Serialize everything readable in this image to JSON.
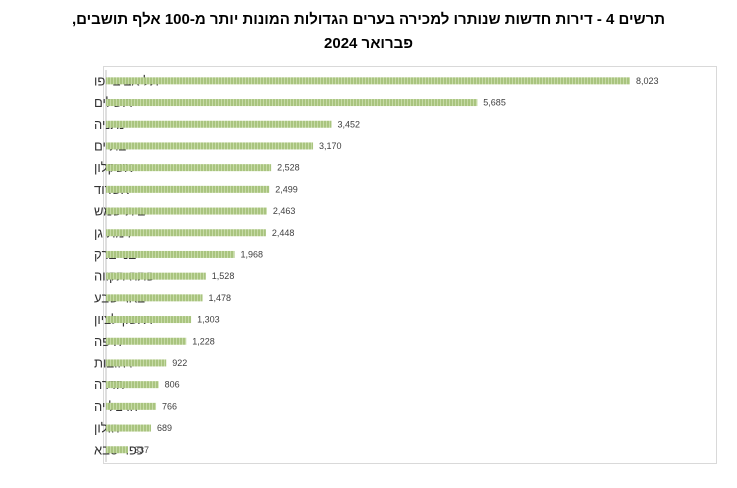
{
  "chart_data": {
    "type": "bar",
    "orientation": "horizontal",
    "title": "תרשים 4 - דירות חדשות שנותרו למכירה בערים הגדולות המונות יותר מ-100 אלף תושבים,",
    "subtitle": "פברואר 2024",
    "xlabel": "",
    "ylabel": "",
    "xlim": [
      0,
      9000
    ],
    "grid": false,
    "legend": "none",
    "bar_color": "#a9c47f",
    "bar_stripe_color": "#c7dba7",
    "categories": [
      "תל אביב-יפו",
      "ירושלים",
      "נתניה",
      "בת ים",
      "אשקלון",
      "אשדוד",
      "בית שמש",
      "רמת גן",
      "בני ברק",
      "פתח תקווה",
      "באר שבע",
      "ראשון לציון",
      "חיפה",
      "רחובות",
      "חדרה",
      "הרצלייה",
      "חולון",
      "כפר סבא"
    ],
    "values": [
      8023,
      5685,
      3452,
      3170,
      2528,
      2499,
      2463,
      2448,
      1968,
      1528,
      1478,
      1303,
      1228,
      922,
      806,
      766,
      689,
      337
    ],
    "value_labels": [
      "8,023",
      "5,685",
      "3,452",
      "3,170",
      "2,528",
      "2,499",
      "2,463",
      "2,448",
      "1,968",
      "1,528",
      "1,478",
      "1,303",
      "1,228",
      "922",
      "806",
      "766",
      "689",
      "337"
    ]
  }
}
